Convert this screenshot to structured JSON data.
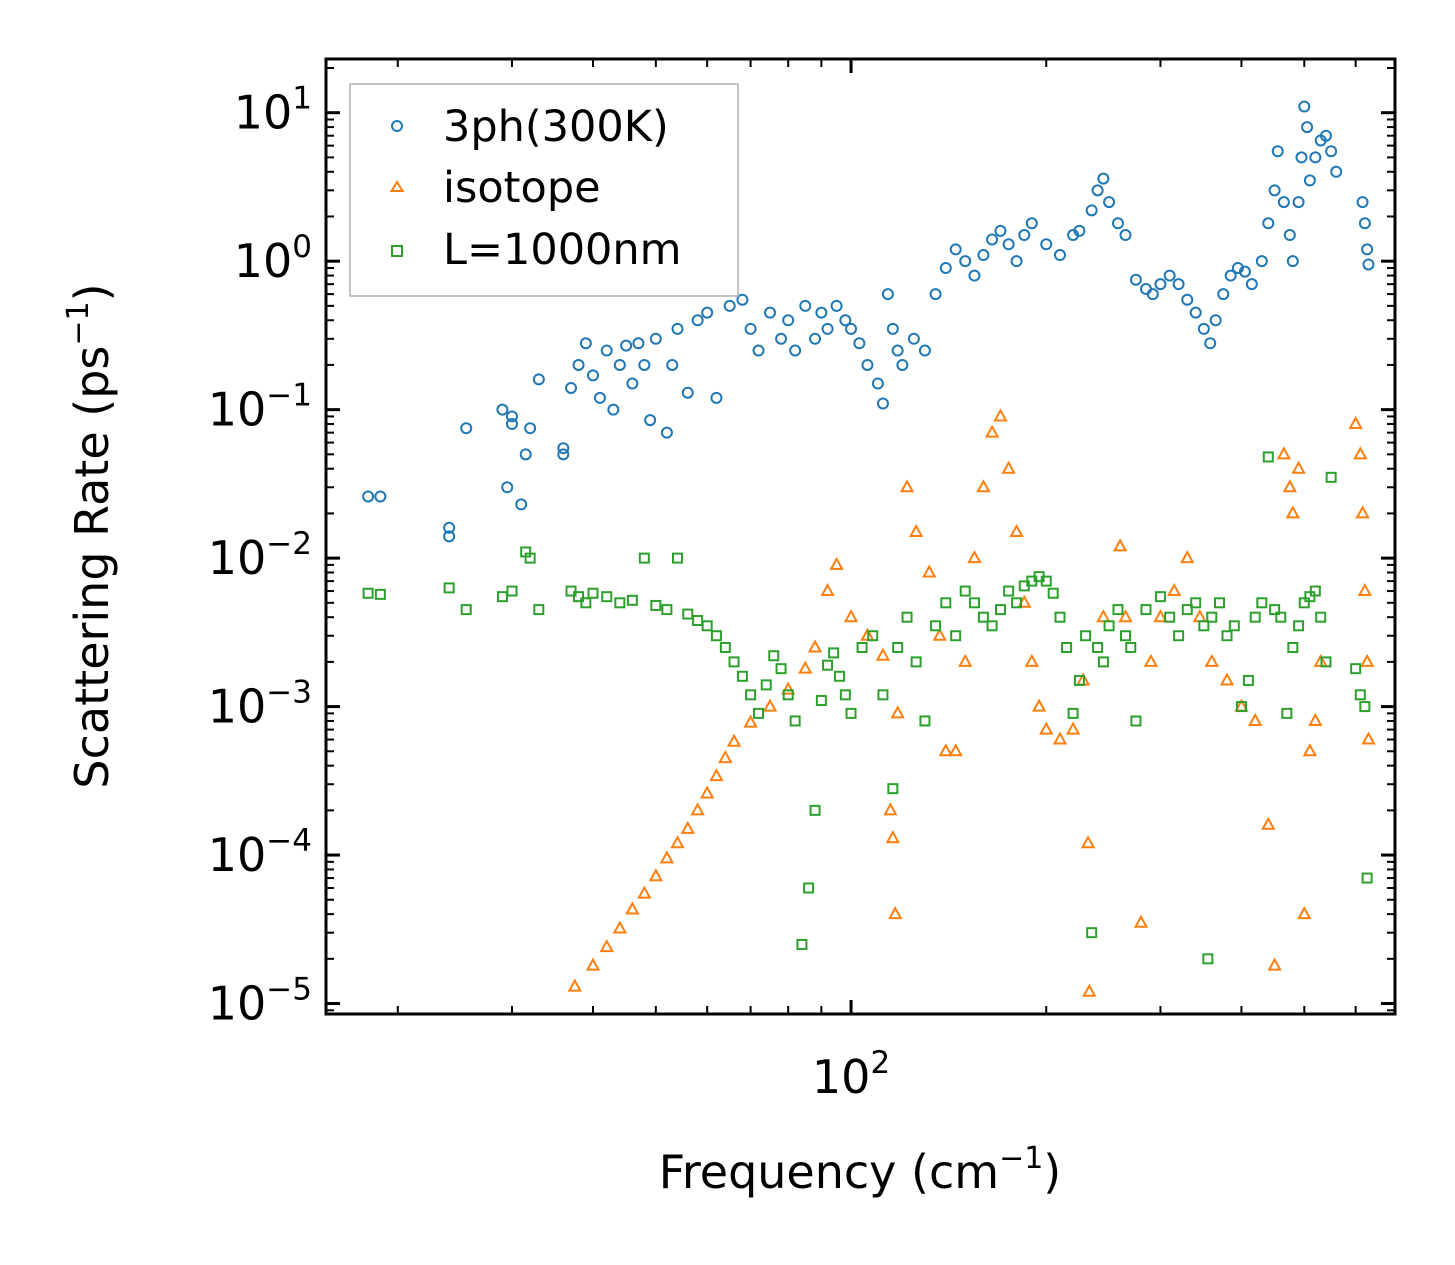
{
  "chart_data": {
    "type": "scatter",
    "xscale": "log",
    "yscale": "log",
    "xlim": [
      15.5,
      690
    ],
    "ylim": [
      8.5e-06,
      23
    ],
    "xlabel": "Frequency (cm",
    "xlabel_sup": "−1",
    "xlabel_end": ")",
    "ylabel": "Scattering Rate (ps",
    "ylabel_sup": "−1",
    "ylabel_end": ")",
    "x_tick_labels": [
      {
        "base": "10",
        "exp": "2",
        "value": 100
      }
    ],
    "y_tick_labels": [
      {
        "base": "10",
        "exp": "1",
        "value": 10
      },
      {
        "base": "10",
        "exp": "0",
        "value": 1
      },
      {
        "base": "10",
        "exp": "−1",
        "value": 0.1
      },
      {
        "base": "10",
        "exp": "−2",
        "value": 0.01
      },
      {
        "base": "10",
        "exp": "−3",
        "value": 0.001
      },
      {
        "base": "10",
        "exp": "−4",
        "value": 0.0001
      },
      {
        "base": "10",
        "exp": "−5",
        "value": 1e-05
      }
    ],
    "legend_position": "top-left",
    "series": [
      {
        "name": "3ph(300K)",
        "marker": "circle",
        "color": "#1f77b4",
        "points": [
          [
            18,
            0.026
          ],
          [
            18.8,
            0.026
          ],
          [
            24,
            0.016
          ],
          [
            24,
            0.014
          ],
          [
            25.5,
            0.075
          ],
          [
            29,
            0.1
          ],
          [
            29.5,
            0.03
          ],
          [
            30,
            0.08
          ],
          [
            30,
            0.09
          ],
          [
            31,
            0.023
          ],
          [
            31.5,
            0.05
          ],
          [
            32,
            0.075
          ],
          [
            33,
            0.16
          ],
          [
            36,
            0.05
          ],
          [
            36,
            0.055
          ],
          [
            37,
            0.14
          ],
          [
            38,
            0.2
          ],
          [
            39,
            0.28
          ],
          [
            40,
            0.17
          ],
          [
            41,
            0.12
          ],
          [
            42,
            0.25
          ],
          [
            43,
            0.1
          ],
          [
            44,
            0.2
          ],
          [
            45,
            0.27
          ],
          [
            46,
            0.15
          ],
          [
            47,
            0.28
          ],
          [
            48,
            0.2
          ],
          [
            49,
            0.085
          ],
          [
            50,
            0.3
          ],
          [
            52,
            0.07
          ],
          [
            53,
            0.2
          ],
          [
            54,
            0.35
          ],
          [
            56,
            0.13
          ],
          [
            58,
            0.4
          ],
          [
            60,
            0.45
          ],
          [
            62,
            0.12
          ],
          [
            65,
            0.5
          ],
          [
            68,
            0.55
          ],
          [
            70,
            0.35
          ],
          [
            72,
            0.25
          ],
          [
            75,
            0.45
          ],
          [
            78,
            0.3
          ],
          [
            80,
            0.4
          ],
          [
            82,
            0.25
          ],
          [
            85,
            0.5
          ],
          [
            88,
            0.3
          ],
          [
            90,
            0.45
          ],
          [
            92,
            0.35
          ],
          [
            95,
            0.5
          ],
          [
            98,
            0.4
          ],
          [
            100,
            0.35
          ],
          [
            103,
            0.28
          ],
          [
            106,
            0.2
          ],
          [
            110,
            0.15
          ],
          [
            112,
            0.11
          ],
          [
            114,
            0.6
          ],
          [
            116,
            0.35
          ],
          [
            118,
            0.25
          ],
          [
            120,
            0.2
          ],
          [
            125,
            0.3
          ],
          [
            130,
            0.25
          ],
          [
            135,
            0.6
          ],
          [
            140,
            0.9
          ],
          [
            145,
            1.2
          ],
          [
            150,
            1.0
          ],
          [
            155,
            0.8
          ],
          [
            160,
            1.1
          ],
          [
            165,
            1.4
          ],
          [
            170,
            1.6
          ],
          [
            175,
            1.3
          ],
          [
            180,
            1.0
          ],
          [
            185,
            1.5
          ],
          [
            190,
            1.8
          ],
          [
            200,
            1.3
          ],
          [
            210,
            1.1
          ],
          [
            220,
            1.5
          ],
          [
            225,
            1.6
          ],
          [
            235,
            2.2
          ],
          [
            240,
            3.0
          ],
          [
            245,
            3.6
          ],
          [
            250,
            2.5
          ],
          [
            258,
            1.8
          ],
          [
            265,
            1.5
          ],
          [
            275,
            0.75
          ],
          [
            285,
            0.65
          ],
          [
            292,
            0.6
          ],
          [
            300,
            0.7
          ],
          [
            310,
            0.8
          ],
          [
            320,
            0.7
          ],
          [
            330,
            0.55
          ],
          [
            340,
            0.45
          ],
          [
            350,
            0.35
          ],
          [
            358,
            0.28
          ],
          [
            365,
            0.4
          ],
          [
            375,
            0.6
          ],
          [
            385,
            0.8
          ],
          [
            395,
            0.9
          ],
          [
            405,
            0.85
          ],
          [
            415,
            0.7
          ],
          [
            430,
            1.0
          ],
          [
            440,
            1.8
          ],
          [
            450,
            3.0
          ],
          [
            455,
            5.5
          ],
          [
            465,
            2.5
          ],
          [
            475,
            1.5
          ],
          [
            480,
            1.0
          ],
          [
            490,
            2.5
          ],
          [
            495,
            5.0
          ],
          [
            500,
            11.0
          ],
          [
            505,
            8.0
          ],
          [
            510,
            3.5
          ],
          [
            520,
            5.0
          ],
          [
            530,
            6.5
          ],
          [
            540,
            7.0
          ],
          [
            550,
            5.5
          ],
          [
            560,
            4.0
          ],
          [
            615,
            2.5
          ],
          [
            620,
            1.8
          ],
          [
            625,
            1.2
          ],
          [
            628,
            0.95
          ]
        ]
      },
      {
        "name": "isotope",
        "marker": "triangle",
        "color": "#ff7f0e",
        "points": [
          [
            37.5,
            1.3e-05
          ],
          [
            40,
            1.8e-05
          ],
          [
            42,
            2.4e-05
          ],
          [
            44,
            3.2e-05
          ],
          [
            46,
            4.3e-05
          ],
          [
            48,
            5.5e-05
          ],
          [
            50,
            7.2e-05
          ],
          [
            52,
            9.5e-05
          ],
          [
            54,
            0.00012
          ],
          [
            56,
            0.00015
          ],
          [
            58,
            0.0002
          ],
          [
            60,
            0.00026
          ],
          [
            62,
            0.00034
          ],
          [
            64,
            0.00045
          ],
          [
            66,
            0.00058
          ],
          [
            70,
            0.00078
          ],
          [
            75,
            0.001
          ],
          [
            80,
            0.0013
          ],
          [
            85,
            0.0018
          ],
          [
            88,
            0.0025
          ],
          [
            92,
            0.006
          ],
          [
            95,
            0.009
          ],
          [
            100,
            0.004
          ],
          [
            106,
            0.003
          ],
          [
            112,
            0.0022
          ],
          [
            115,
            0.0002
          ],
          [
            116,
            0.00013
          ],
          [
            117,
            4e-05
          ],
          [
            118,
            0.0009
          ],
          [
            122,
            0.03
          ],
          [
            126,
            0.015
          ],
          [
            132,
            0.008
          ],
          [
            137,
            0.003
          ],
          [
            140,
            0.0005
          ],
          [
            145,
            0.0005
          ],
          [
            150,
            0.002
          ],
          [
            155,
            0.01
          ],
          [
            160,
            0.03
          ],
          [
            165,
            0.07
          ],
          [
            170,
            0.09
          ],
          [
            175,
            0.04
          ],
          [
            180,
            0.015
          ],
          [
            185,
            0.005
          ],
          [
            190,
            0.002
          ],
          [
            195,
            0.001
          ],
          [
            200,
            0.0007
          ],
          [
            210,
            0.0006
          ],
          [
            220,
            0.0007
          ],
          [
            228,
            0.0015
          ],
          [
            232,
            0.00012
          ],
          [
            233,
            1.2e-05
          ],
          [
            245,
            0.004
          ],
          [
            260,
            0.012
          ],
          [
            265,
            0.004
          ],
          [
            280,
            3.5e-05
          ],
          [
            290,
            0.002
          ],
          [
            300,
            0.004
          ],
          [
            315,
            0.006
          ],
          [
            330,
            0.01
          ],
          [
            345,
            0.004
          ],
          [
            360,
            0.002
          ],
          [
            380,
            0.0015
          ],
          [
            400,
            0.001
          ],
          [
            420,
            0.0008
          ],
          [
            440,
            0.00016
          ],
          [
            450,
            1.8e-05
          ],
          [
            465,
            0.05
          ],
          [
            475,
            0.03
          ],
          [
            480,
            0.02
          ],
          [
            490,
            0.04
          ],
          [
            500,
            4e-05
          ],
          [
            510,
            0.0005
          ],
          [
            520,
            0.0008
          ],
          [
            530,
            0.002
          ],
          [
            600,
            0.08
          ],
          [
            610,
            0.05
          ],
          [
            615,
            0.02
          ],
          [
            620,
            0.006
          ],
          [
            625,
            0.002
          ],
          [
            628,
            0.0006
          ]
        ]
      },
      {
        "name": "L=1000nm",
        "marker": "square",
        "color": "#2ca02c",
        "points": [
          [
            18,
            0.0058
          ],
          [
            18.8,
            0.0057
          ],
          [
            24,
            0.0063
          ],
          [
            25.5,
            0.0045
          ],
          [
            29,
            0.0055
          ],
          [
            30,
            0.006
          ],
          [
            31.5,
            0.011
          ],
          [
            32,
            0.01
          ],
          [
            33,
            0.0045
          ],
          [
            37,
            0.006
          ],
          [
            38,
            0.0055
          ],
          [
            39,
            0.005
          ],
          [
            40,
            0.0058
          ],
          [
            42,
            0.0055
          ],
          [
            44,
            0.005
          ],
          [
            46,
            0.0052
          ],
          [
            48,
            0.01
          ],
          [
            50,
            0.0048
          ],
          [
            52,
            0.0045
          ],
          [
            54,
            0.01
          ],
          [
            56,
            0.0042
          ],
          [
            58,
            0.0038
          ],
          [
            60,
            0.0035
          ],
          [
            62,
            0.003
          ],
          [
            64,
            0.0025
          ],
          [
            66,
            0.002
          ],
          [
            68,
            0.0016
          ],
          [
            70,
            0.0012
          ],
          [
            72,
            0.0009
          ],
          [
            74,
            0.0014
          ],
          [
            76,
            0.0022
          ],
          [
            78,
            0.0018
          ],
          [
            80,
            0.0012
          ],
          [
            82,
            0.0008
          ],
          [
            84,
            2.5e-05
          ],
          [
            86,
            6e-05
          ],
          [
            88,
            0.0002
          ],
          [
            90,
            0.0011
          ],
          [
            92,
            0.0019
          ],
          [
            94,
            0.0023
          ],
          [
            96,
            0.0016
          ],
          [
            98,
            0.0012
          ],
          [
            100,
            0.0009
          ],
          [
            104,
            0.0025
          ],
          [
            108,
            0.003
          ],
          [
            112,
            0.0012
          ],
          [
            116,
            0.00028
          ],
          [
            118,
            0.0025
          ],
          [
            122,
            0.004
          ],
          [
            126,
            0.002
          ],
          [
            130,
            0.0008
          ],
          [
            135,
            0.0035
          ],
          [
            140,
            0.005
          ],
          [
            145,
            0.003
          ],
          [
            150,
            0.006
          ],
          [
            155,
            0.005
          ],
          [
            160,
            0.004
          ],
          [
            165,
            0.0035
          ],
          [
            170,
            0.0045
          ],
          [
            175,
            0.006
          ],
          [
            180,
            0.005
          ],
          [
            185,
            0.0065
          ],
          [
            190,
            0.007
          ],
          [
            195,
            0.0075
          ],
          [
            200,
            0.007
          ],
          [
            205,
            0.0058
          ],
          [
            210,
            0.004
          ],
          [
            215,
            0.0025
          ],
          [
            220,
            0.0009
          ],
          [
            225,
            0.0015
          ],
          [
            230,
            0.003
          ],
          [
            235,
            3e-05
          ],
          [
            240,
            0.0025
          ],
          [
            245,
            0.002
          ],
          [
            250,
            0.0035
          ],
          [
            258,
            0.0045
          ],
          [
            265,
            0.003
          ],
          [
            270,
            0.0025
          ],
          [
            275,
            0.0008
          ],
          [
            285,
            0.0045
          ],
          [
            300,
            0.0055
          ],
          [
            310,
            0.004
          ],
          [
            320,
            0.003
          ],
          [
            330,
            0.0045
          ],
          [
            340,
            0.005
          ],
          [
            350,
            0.0035
          ],
          [
            355,
            2e-05
          ],
          [
            360,
            0.004
          ],
          [
            370,
            0.005
          ],
          [
            380,
            0.003
          ],
          [
            390,
            0.0035
          ],
          [
            400,
            0.001
          ],
          [
            410,
            0.0015
          ],
          [
            420,
            0.004
          ],
          [
            430,
            0.005
          ],
          [
            440,
            0.048
          ],
          [
            450,
            0.0045
          ],
          [
            460,
            0.004
          ],
          [
            470,
            0.0009
          ],
          [
            480,
            0.0025
          ],
          [
            490,
            0.0035
          ],
          [
            500,
            0.005
          ],
          [
            510,
            0.0055
          ],
          [
            520,
            0.006
          ],
          [
            530,
            0.004
          ],
          [
            540,
            0.002
          ],
          [
            550,
            0.035
          ],
          [
            600,
            0.0018
          ],
          [
            610,
            0.0012
          ],
          [
            620,
            0.001
          ],
          [
            625,
            7e-05
          ]
        ]
      }
    ]
  }
}
